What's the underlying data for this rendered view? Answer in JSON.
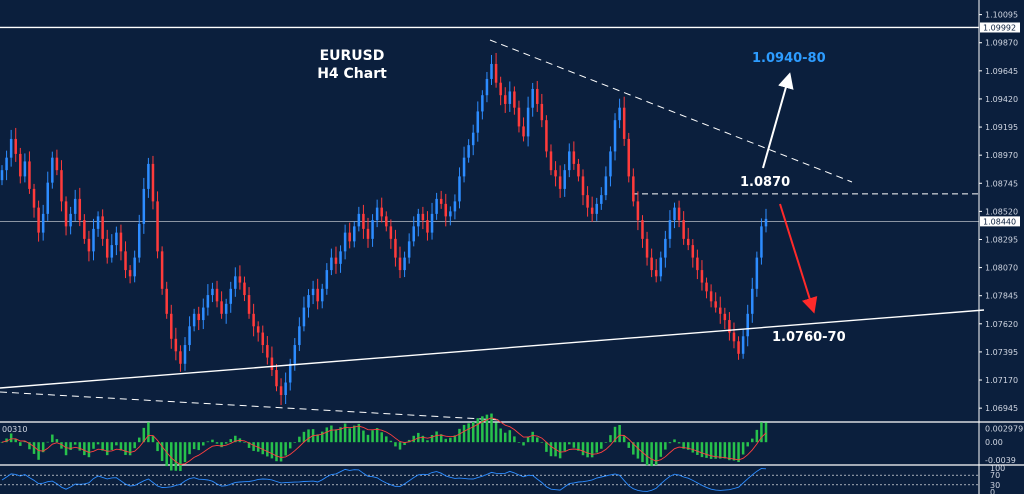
{
  "chart_data": {
    "type": "candlestick",
    "title": "EURUSD",
    "subtitle": "H4 Chart",
    "y_ticks": [
      "1.10095",
      "1.09870",
      "1.09645",
      "1.09420",
      "1.09195",
      "1.08970",
      "1.08745",
      "1.08520",
      "1.08295",
      "1.08070",
      "1.07845",
      "1.07620",
      "1.07395",
      "1.07170",
      "1.06945"
    ],
    "y_range": [
      1.0685,
      1.1018
    ],
    "price_boxes": [
      {
        "label": "1.09992",
        "value": 1.09992
      },
      {
        "label": "1.08440",
        "value": 1.0844
      }
    ],
    "levels": [
      {
        "value": 1.09992,
        "style": "solid"
      },
      {
        "value": 1.0844,
        "style": "solid-thin"
      },
      {
        "value": 1.0866,
        "style": "dashed"
      }
    ],
    "annotations": [
      {
        "text": "1.0940-80",
        "color": "#2d9cff"
      },
      {
        "text": "1.0870",
        "color": "#ffffff"
      },
      {
        "text": "1.0760-70",
        "color": "#ffffff"
      }
    ],
    "macd": {
      "label": "00310",
      "ticks": [
        "0.002979",
        "0.00",
        "-0.0039"
      ],
      "range": [
        -0.0045,
        0.0035
      ]
    },
    "osc": {
      "ticks": [
        "100",
        "70",
        "30",
        "0"
      ]
    },
    "colors": {
      "bull": "#2d8cff",
      "bear": "#ff3b3b",
      "hist": "#27c24c",
      "signal": "#ff4040",
      "grid": "#ffffff"
    },
    "close_series": [
      1.0885,
      1.0895,
      1.091,
      1.0898,
      1.088,
      1.0892,
      1.087,
      1.0855,
      1.0835,
      1.085,
      1.0875,
      1.0895,
      1.0885,
      1.086,
      1.084,
      1.085,
      1.0862,
      1.0845,
      1.083,
      1.082,
      1.0838,
      1.0848,
      1.083,
      1.0815,
      1.0825,
      1.0835,
      1.082,
      1.0805,
      1.08,
      1.0815,
      1.0842,
      1.087,
      1.089,
      1.086,
      1.082,
      1.079,
      1.077,
      1.075,
      1.074,
      1.073,
      1.0745,
      1.076,
      1.077,
      1.0765,
      1.0775,
      1.0785,
      1.079,
      1.078,
      1.077,
      1.0778,
      1.079,
      1.08,
      1.0795,
      1.0785,
      1.077,
      1.076,
      1.0755,
      1.0745,
      1.0735,
      1.0725,
      1.0712,
      1.0705,
      1.0715,
      1.073,
      1.0745,
      1.076,
      1.0775,
      1.0785,
      1.079,
      1.078,
      1.079,
      1.0805,
      1.0815,
      1.081,
      1.082,
      1.0835,
      1.0828,
      1.084,
      1.085,
      1.0838,
      1.083,
      1.0845,
      1.0855,
      1.0848,
      1.084,
      1.083,
      1.0815,
      1.0805,
      1.0815,
      1.0828,
      1.084,
      1.085,
      1.0845,
      1.0835,
      1.085,
      1.0862,
      1.0858,
      1.0848,
      1.0852,
      1.086,
      1.088,
      1.0895,
      1.0905,
      1.0915,
      1.0932,
      1.0945,
      1.0958,
      1.097,
      1.0955,
      1.0945,
      1.0938,
      1.0948,
      1.0935,
      1.092,
      1.0912,
      1.0935,
      1.095,
      1.0938,
      1.0925,
      1.09,
      1.0885,
      1.088,
      1.087,
      1.0885,
      1.09,
      1.089,
      1.088,
      1.0865,
      1.0855,
      1.085,
      1.0858,
      1.0865,
      1.088,
      1.09,
      1.0925,
      1.0935,
      1.091,
      1.088,
      1.086,
      1.0845,
      1.083,
      1.0815,
      1.0805,
      1.08,
      1.0815,
      1.083,
      1.0845,
      1.0855,
      1.0845,
      1.083,
      1.0825,
      1.0815,
      1.0805,
      1.0795,
      1.0788,
      1.078,
      1.0775,
      1.077,
      1.0765,
      1.0755,
      1.0748,
      1.0738,
      1.0752,
      1.077,
      1.079,
      1.0815,
      1.084,
      1.0846
    ]
  }
}
